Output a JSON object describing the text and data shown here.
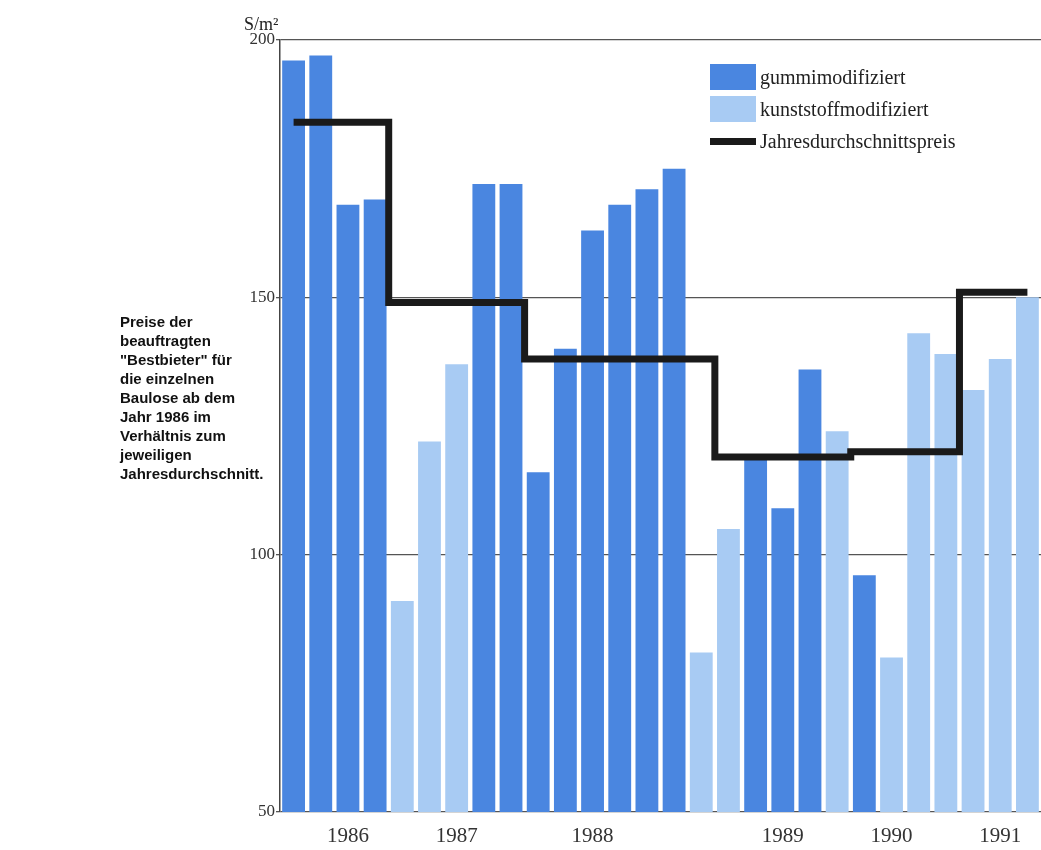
{
  "chart_data": {
    "type": "bar",
    "ylabel": "S/m²",
    "annotations": [
      "Preise der beauftragten \"Bestbieter\" für die einzelnen Baulose ab dem Jahr 1986 im Verhältnis zum jeweiligen Jahresdurchschnitt."
    ],
    "categories": [
      null,
      null,
      "1986",
      null,
      null,
      null,
      "1987",
      null,
      null,
      null,
      null,
      "1988",
      null,
      null,
      null,
      null,
      null,
      null,
      "1989",
      null,
      null,
      null,
      "1990",
      null,
      null,
      null,
      "1991",
      null
    ],
    "ylim": [
      50,
      200
    ],
    "yticks": [
      50,
      100,
      150,
      200
    ],
    "grid": "y",
    "legend": "top right",
    "series": [
      {
        "name": "gummimodifiziert",
        "color": "#4a86e0",
        "values": [
          196,
          197,
          168,
          169,
          null,
          null,
          null,
          172,
          172,
          116,
          140,
          163,
          168,
          171,
          175,
          null,
          null,
          119,
          109,
          136,
          null,
          96,
          null,
          null,
          null,
          null,
          null,
          null
        ]
      },
      {
        "name": "kunststoffmodifiziert",
        "color": "#a8cbf3",
        "values": [
          null,
          null,
          null,
          null,
          91,
          122,
          137,
          null,
          null,
          null,
          null,
          null,
          null,
          null,
          null,
          81,
          105,
          null,
          null,
          null,
          124,
          null,
          80,
          143,
          139,
          132,
          138,
          150
        ]
      },
      {
        "name": "Jahresdurchschnittspreis",
        "type": "step",
        "color": "#1a1a1a",
        "values": [
          184,
          184,
          184,
          184,
          149,
          149,
          149,
          149,
          149,
          138,
          138,
          138,
          138,
          138,
          138,
          138,
          119,
          119,
          119,
          119,
          119,
          120,
          120,
          120,
          120,
          151,
          151,
          151
        ]
      }
    ]
  }
}
